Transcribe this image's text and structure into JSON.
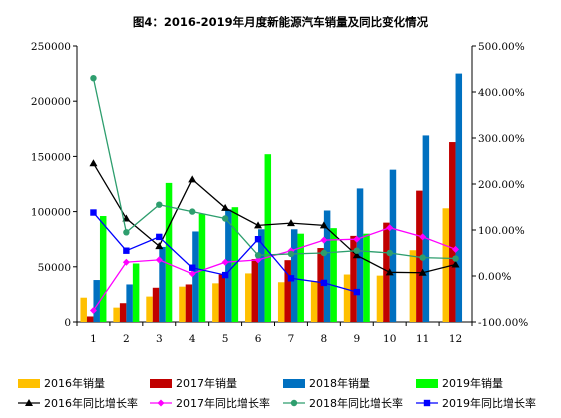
{
  "chart_data": {
    "type": "bar",
    "title": "图4：2016-2019年月度新能源汽车销量及同比变化情况",
    "categories": [
      "1",
      "2",
      "3",
      "4",
      "5",
      "6",
      "7",
      "8",
      "9",
      "10",
      "11",
      "12"
    ],
    "y_left": {
      "min": 0,
      "max": 250000,
      "ticks": [
        "0",
        "50000",
        "100000",
        "150000",
        "200000",
        "250000"
      ]
    },
    "y_right": {
      "min": -100,
      "max": 500,
      "ticks": [
        "-100.00%",
        "0.00%",
        "100.00%",
        "200.00%",
        "300.00%",
        "400.00%",
        "500.00%"
      ]
    },
    "bar_series": [
      {
        "name": "2016年销量",
        "color": "#ffc000",
        "values": [
          22000,
          13000,
          23000,
          32000,
          35000,
          44000,
          36000,
          37000,
          43000,
          42000,
          65000,
          103000
        ]
      },
      {
        "name": "2017年销量",
        "color": "#c00000",
        "values": [
          5000,
          17000,
          31000,
          34000,
          43000,
          57000,
          56000,
          67000,
          78000,
          90000,
          119000,
          163000
        ]
      },
      {
        "name": "2018年销量",
        "color": "#0070c0",
        "values": [
          38000,
          34000,
          68000,
          82000,
          102000,
          84000,
          84000,
          101000,
          121000,
          138000,
          169000,
          225000
        ]
      },
      {
        "name": "2019年销量",
        "color": "#00ff00",
        "values": [
          96000,
          53000,
          126000,
          98000,
          104000,
          152000,
          80000,
          85000,
          80000,
          null,
          null,
          null
        ]
      }
    ],
    "line_series": [
      {
        "name": "2016年同比增长率",
        "color": "#000000",
        "marker": "triangle",
        "values": [
          245,
          125,
          65,
          210,
          148,
          110,
          115,
          110,
          45,
          8,
          7,
          25
        ]
      },
      {
        "name": "2017年同比增长率",
        "color": "#ff00ff",
        "marker": "diamond",
        "values": [
          -75,
          30,
          35,
          5,
          30,
          35,
          55,
          78,
          80,
          105,
          85,
          58
        ]
      },
      {
        "name": "2018年同比增长率",
        "color": "#2e9e6e",
        "marker": "circle",
        "values": [
          430,
          95,
          155,
          140,
          125,
          45,
          48,
          50,
          55,
          50,
          40,
          38
        ]
      },
      {
        "name": "2019年同比增长率",
        "color": "#0000ff",
        "marker": "square",
        "values": [
          138,
          55,
          85,
          18,
          2,
          80,
          -5,
          -15,
          -35,
          null,
          null,
          null
        ]
      }
    ]
  }
}
